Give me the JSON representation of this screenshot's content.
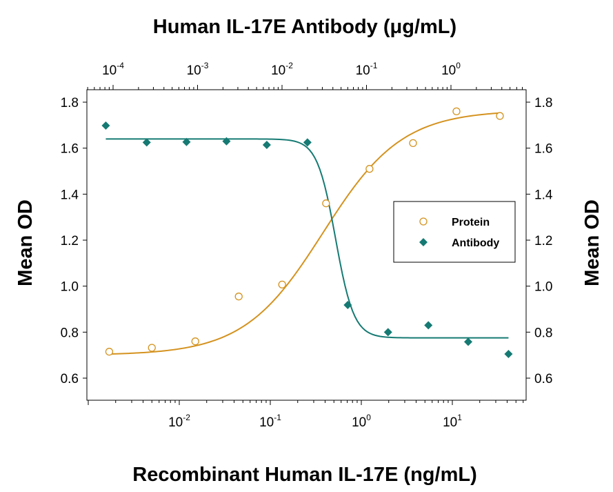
{
  "chart_data": {
    "type": "scatter",
    "title": "",
    "top_xlabel": "Human IL-17E Antibody (μg/mL)",
    "xlabel": "Recombinant Human IL-17E  (ng/mL)",
    "ylabel": "Mean OD",
    "y2label": "Mean OD",
    "ylim": [
      0.5,
      1.85
    ],
    "yticks": [
      "0.6",
      "0.8",
      "1.0",
      "1.2",
      "1.4",
      "1.6",
      "1.8"
    ],
    "y_scale": "linear",
    "bottom_x_scale": "log",
    "top_x_scale": "log",
    "bottom_xticks": [
      {
        "base": "10",
        "exp": "-2",
        "value": 0.01
      },
      {
        "base": "10",
        "exp": "-1",
        "value": 0.1
      },
      {
        "base": "10",
        "exp": "0",
        "value": 1
      },
      {
        "base": "10",
        "exp": "1",
        "value": 10
      }
    ],
    "top_xticks": [
      {
        "base": "10",
        "exp": "-4",
        "value": 0.0001
      },
      {
        "base": "10",
        "exp": "-3",
        "value": 0.001
      },
      {
        "base": "10",
        "exp": "-2",
        "value": 0.01
      },
      {
        "base": "10",
        "exp": "-1",
        "value": 0.1
      },
      {
        "base": "10",
        "exp": "0",
        "value": 1
      }
    ],
    "grid": false,
    "legend_position": "right",
    "series": [
      {
        "name": "Protein",
        "marker": "open-circle",
        "color": "#d4921e",
        "x_axis": "bottom",
        "x": [
          0.0017,
          0.005,
          0.015,
          0.045,
          0.135,
          0.41,
          1.23,
          3.7,
          11.1,
          33.3
        ],
        "y": [
          0.715,
          0.732,
          0.76,
          0.955,
          1.007,
          1.36,
          1.51,
          1.622,
          1.76,
          1.74
        ],
        "fit": {
          "model": "4PL",
          "bottom": 0.7,
          "top": 1.765,
          "ec50": 0.38,
          "hill": 1.0
        }
      },
      {
        "name": "Antibody",
        "marker": "filled-diamond",
        "color": "#157a73",
        "x_axis": "top",
        "x": [
          8.2e-05,
          0.00025,
          0.00074,
          0.0022,
          0.0066,
          0.02,
          0.06,
          0.18,
          0.54,
          1.6,
          4.8
        ],
        "y": [
          1.698,
          1.625,
          1.627,
          1.63,
          1.614,
          1.625,
          0.918,
          0.8,
          0.83,
          0.758,
          0.705
        ],
        "fit": {
          "model": "4PL",
          "bottom": 0.775,
          "top": 1.64,
          "ec50": 0.043,
          "hill": -4.0
        }
      }
    ]
  }
}
